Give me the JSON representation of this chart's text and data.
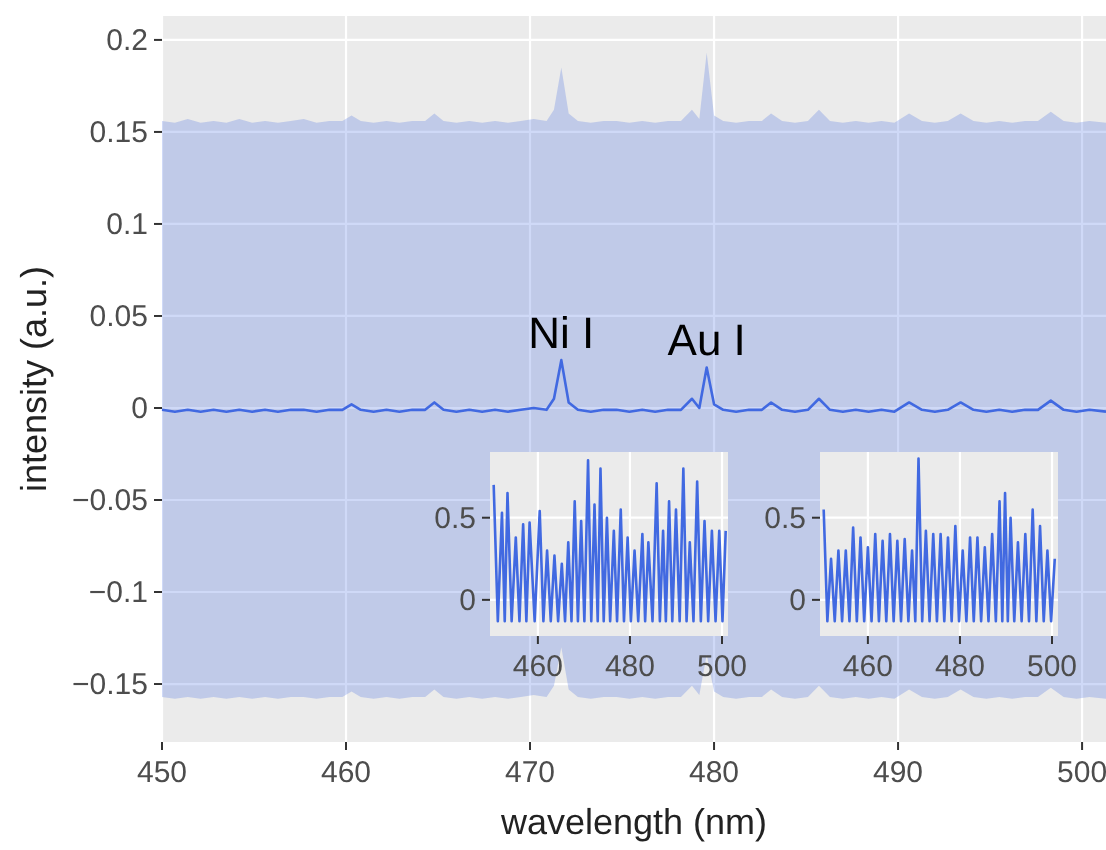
{
  "chart_data": [
    {
      "type": "line",
      "xlabel": "wavelength (nm)",
      "ylabel": "intensity (a.u.)",
      "xlim": [
        450,
        501.3
      ],
      "ylim": [
        -0.1815,
        0.213
      ],
      "xticks": [
        450,
        460,
        470,
        480,
        490,
        500
      ],
      "yticks": [
        {
          "value": -0.15,
          "label": "−0.15"
        },
        {
          "value": -0.1,
          "label": "−0.1"
        },
        {
          "value": -0.05,
          "label": "−0.05"
        },
        0,
        0.05,
        0.1,
        0.15,
        0.2
      ],
      "grid": true,
      "line_style": "solid",
      "marker": "none",
      "annotations": [
        {
          "text": "Ni I",
          "x": 471.7,
          "y": 0.026
        },
        {
          "text": "Au I",
          "x": 479.6,
          "y": 0.022
        }
      ],
      "series": [
        {
          "color": "#4169e1",
          "x": [
            450,
            450.7,
            451.4,
            452.1,
            452.8,
            453.5,
            454.2,
            454.9,
            455.6,
            456.3,
            457,
            457.7,
            458.4,
            459.1,
            459.8,
            460.3,
            460.8,
            461.5,
            462.2,
            462.9,
            463.6,
            464.3,
            464.8,
            465.3,
            466,
            466.7,
            467.4,
            468.1,
            468.8,
            469.5,
            470.2,
            470.9,
            471.3,
            471.7,
            472.1,
            472.6,
            473.3,
            474,
            474.7,
            475.4,
            476.1,
            476.8,
            477.5,
            478.2,
            478.8,
            479.2,
            479.6,
            480,
            480.5,
            481.2,
            481.9,
            482.6,
            483.1,
            483.7,
            484.4,
            485.1,
            485.7,
            486.3,
            487,
            487.7,
            488.4,
            489.1,
            489.8,
            490.6,
            491.3,
            492,
            492.7,
            493.4,
            494.1,
            494.8,
            495.5,
            496.2,
            496.9,
            497.6,
            498.3,
            499,
            499.7,
            500.4,
            501.3
          ],
          "values": [
            -0.001,
            -0.002,
            -0.001,
            -0.002,
            -0.001,
            -0.002,
            -0.001,
            -0.002,
            -0.001,
            -0.002,
            -0.001,
            -0.001,
            -0.002,
            -0.001,
            -0.001,
            0.002,
            -0.001,
            -0.002,
            -0.001,
            -0.002,
            -0.001,
            -0.001,
            0.003,
            -0.001,
            -0.002,
            -0.001,
            -0.002,
            -0.001,
            -0.002,
            -0.001,
            0,
            -0.001,
            0.005,
            0.026,
            0.003,
            -0.001,
            -0.002,
            -0.001,
            -0.001,
            -0.002,
            -0.001,
            -0.002,
            -0.001,
            -0.001,
            0.005,
            0,
            0.022,
            0.002,
            -0.001,
            -0.002,
            -0.001,
            -0.001,
            0.003,
            -0.001,
            -0.002,
            -0.001,
            0.005,
            -0.001,
            -0.002,
            -0.001,
            -0.002,
            -0.001,
            -0.002,
            0.003,
            -0.001,
            -0.002,
            -0.001,
            0.003,
            -0.001,
            -0.002,
            -0.001,
            -0.002,
            -0.001,
            -0.001,
            0.004,
            -0.001,
            -0.002,
            -0.001,
            -0.002
          ],
          "upper": [
            0.156,
            0.155,
            0.157,
            0.155,
            0.156,
            0.155,
            0.157,
            0.155,
            0.156,
            0.155,
            0.156,
            0.157,
            0.155,
            0.156,
            0.156,
            0.159,
            0.156,
            0.155,
            0.156,
            0.155,
            0.156,
            0.156,
            0.16,
            0.156,
            0.155,
            0.156,
            0.155,
            0.156,
            0.155,
            0.156,
            0.157,
            0.156,
            0.162,
            0.185,
            0.16,
            0.156,
            0.155,
            0.156,
            0.156,
            0.155,
            0.156,
            0.155,
            0.156,
            0.156,
            0.162,
            0.157,
            0.193,
            0.159,
            0.156,
            0.155,
            0.156,
            0.156,
            0.16,
            0.156,
            0.155,
            0.156,
            0.162,
            0.156,
            0.155,
            0.156,
            0.155,
            0.156,
            0.155,
            0.16,
            0.156,
            0.155,
            0.156,
            0.16,
            0.156,
            0.155,
            0.156,
            0.155,
            0.156,
            0.156,
            0.161,
            0.156,
            0.155,
            0.156,
            0.155
          ],
          "lower": [
            -0.157,
            -0.158,
            -0.157,
            -0.158,
            -0.157,
            -0.158,
            -0.157,
            -0.158,
            -0.157,
            -0.158,
            -0.157,
            -0.157,
            -0.158,
            -0.157,
            -0.157,
            -0.154,
            -0.157,
            -0.158,
            -0.157,
            -0.158,
            -0.157,
            -0.157,
            -0.153,
            -0.157,
            -0.158,
            -0.157,
            -0.158,
            -0.157,
            -0.158,
            -0.157,
            -0.156,
            -0.157,
            -0.151,
            -0.13,
            -0.153,
            -0.157,
            -0.158,
            -0.157,
            -0.157,
            -0.158,
            -0.157,
            -0.158,
            -0.157,
            -0.157,
            -0.151,
            -0.156,
            -0.134,
            -0.154,
            -0.157,
            -0.158,
            -0.157,
            -0.157,
            -0.153,
            -0.157,
            -0.158,
            -0.157,
            -0.151,
            -0.157,
            -0.158,
            -0.157,
            -0.158,
            -0.157,
            -0.158,
            -0.153,
            -0.157,
            -0.158,
            -0.157,
            -0.153,
            -0.157,
            -0.158,
            -0.157,
            -0.158,
            -0.157,
            -0.157,
            -0.152,
            -0.157,
            -0.158,
            -0.157,
            -0.158
          ]
        }
      ]
    },
    {
      "type": "line",
      "xlim": [
        449.6,
        501.3
      ],
      "ylim": [
        -0.22,
        0.9
      ],
      "xticks": [
        460,
        480,
        500
      ],
      "yticks": [
        0,
        0.5
      ],
      "grid": true,
      "line_style": "solid",
      "marker": "none",
      "series": [
        {
          "color": "#4169e1",
          "x": [
            450.4,
            451.3,
            452.2,
            452.8,
            453.4,
            454.3,
            455.2,
            456,
            456.8,
            457.5,
            458.2,
            459.3,
            460.4,
            461.2,
            462,
            462.8,
            463.6,
            464.4,
            465.2,
            465.9,
            466.6,
            467.3,
            468,
            468.7,
            469.4,
            470.1,
            470.9,
            471.6,
            472.3,
            473,
            473.6,
            474.3,
            475,
            475.7,
            476.5,
            477.2,
            478,
            478.7,
            479.5,
            480.2,
            481,
            481.8,
            482.7,
            483.3,
            484,
            484.9,
            485.8,
            486.5,
            487.2,
            487.8,
            488.5,
            489.2,
            490,
            490.8,
            491.6,
            492.3,
            493,
            493.8,
            494.6,
            495.4,
            496.2,
            497,
            497.8,
            498.6,
            499.4,
            500.1,
            500.8
          ],
          "values": [
            0.7,
            -0.13,
            0.53,
            -0.13,
            0.65,
            -0.13,
            0.38,
            -0.13,
            0.46,
            -0.13,
            0.47,
            -0.13,
            0.54,
            -0.13,
            0.3,
            -0.13,
            0.27,
            -0.13,
            0.22,
            -0.13,
            0.35,
            -0.13,
            0.6,
            -0.13,
            0.48,
            -0.13,
            0.85,
            -0.13,
            0.58,
            -0.13,
            0.8,
            -0.13,
            0.5,
            -0.13,
            0.42,
            -0.13,
            0.55,
            -0.13,
            0.38,
            -0.13,
            0.3,
            -0.13,
            0.4,
            -0.13,
            0.35,
            -0.13,
            0.71,
            -0.13,
            0.42,
            -0.13,
            0.6,
            -0.13,
            0.55,
            -0.13,
            0.8,
            -0.13,
            0.35,
            -0.13,
            0.72,
            -0.13,
            0.48,
            -0.13,
            0.42,
            -0.13,
            0.42,
            -0.13,
            0.42
          ]
        }
      ]
    },
    {
      "type": "line",
      "xlim": [
        449.6,
        501.3
      ],
      "ylim": [
        -0.22,
        0.9
      ],
      "xticks": [
        460,
        480,
        500
      ],
      "yticks": [
        0,
        0.5
      ],
      "grid": true,
      "line_style": "solid",
      "marker": "none",
      "series": [
        {
          "color": "#4169e1",
          "x": [
            450.4,
            451.2,
            452,
            452.8,
            453.6,
            454.4,
            455.2,
            456,
            456.8,
            457.6,
            458.4,
            459.2,
            460,
            460.8,
            461.6,
            462.4,
            463.2,
            464,
            464.8,
            465.6,
            466.4,
            467.2,
            468,
            468.8,
            469.6,
            470.3,
            471,
            471.8,
            472.6,
            473.4,
            474.2,
            475,
            475.8,
            476.6,
            477.4,
            478.2,
            479,
            479.8,
            480.6,
            481.4,
            482.2,
            483,
            483.8,
            484.6,
            485.4,
            486.2,
            487,
            487.8,
            488.6,
            489.2,
            489.8,
            490.4,
            491,
            491.8,
            492.6,
            493.4,
            494.2,
            495,
            495.8,
            496.6,
            497.4,
            498.2,
            499,
            499.8,
            500.6
          ],
          "values": [
            0.55,
            -0.13,
            0.25,
            -0.13,
            0.3,
            -0.13,
            0.3,
            -0.13,
            0.44,
            -0.13,
            0.38,
            -0.13,
            0.32,
            -0.13,
            0.4,
            -0.13,
            0.36,
            -0.13,
            0.4,
            -0.13,
            0.36,
            -0.13,
            0.37,
            -0.13,
            0.3,
            -0.13,
            0.86,
            -0.13,
            0.42,
            -0.13,
            0.4,
            -0.13,
            0.4,
            -0.13,
            0.38,
            -0.13,
            0.45,
            -0.13,
            0.3,
            -0.13,
            0.38,
            -0.13,
            0.38,
            -0.13,
            0.32,
            -0.13,
            0.4,
            -0.13,
            0.6,
            -0.13,
            0.65,
            -0.13,
            0.5,
            -0.13,
            0.35,
            -0.13,
            0.4,
            -0.13,
            0.55,
            -0.13,
            0.45,
            -0.13,
            0.3,
            -0.13,
            0.25
          ]
        }
      ]
    }
  ]
}
